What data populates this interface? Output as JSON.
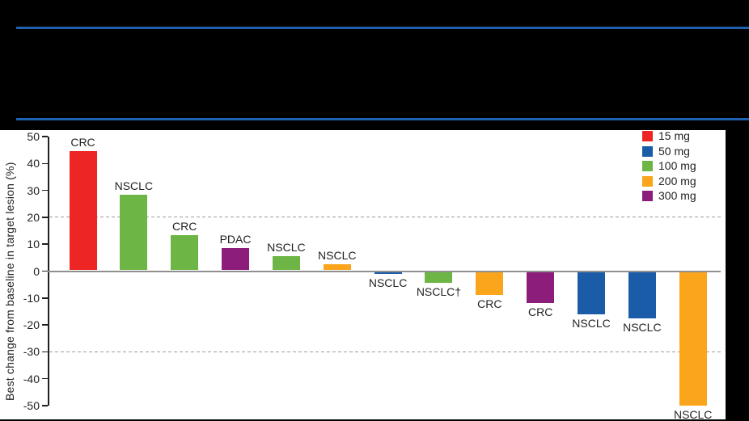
{
  "colors": {
    "background": "#000000",
    "panel_background": "#FFFFFF",
    "header_rule": "#1E63B0",
    "axis": "#231F20",
    "zero_line": "#8F8F8F",
    "reference_line": "#9C9C9C",
    "text": "#231F20"
  },
  "chart_data": {
    "type": "bar",
    "subtype": "waterfall",
    "title": "",
    "ylabel": "Best change from baseline in target lesion (%)",
    "ylim": [
      -50,
      50
    ],
    "yticks": [
      50,
      40,
      30,
      20,
      10,
      0,
      -10,
      -20,
      -30,
      -40,
      -50
    ],
    "reference_lines": [
      20,
      -30
    ],
    "legend_position": "top-right",
    "legend": [
      {
        "label": "15 mg",
        "color": "#ED2524"
      },
      {
        "label": "50 mg",
        "color": "#1A5CA8"
      },
      {
        "label": "100 mg",
        "color": "#6DB544"
      },
      {
        "label": "200 mg",
        "color": "#FAA51C"
      },
      {
        "label": "300 mg",
        "color": "#8C1D7B"
      }
    ],
    "bars": [
      {
        "label": "CRC",
        "dose": "15 mg",
        "value": 44.5
      },
      {
        "label": "NSCLC",
        "dose": "100 mg",
        "value": 28.5
      },
      {
        "label": "CRC",
        "dose": "100 mg",
        "value": 13.5
      },
      {
        "label": "PDAC",
        "dose": "300 mg",
        "value": 8.5
      },
      {
        "label": "NSCLC",
        "dose": "100 mg",
        "value": 5.5
      },
      {
        "label": "NSCLC",
        "dose": "200 mg",
        "value": 2.5
      },
      {
        "label": "NSCLC",
        "dose": "50 mg",
        "value": -1
      },
      {
        "label": "NSCLC†",
        "dose": "100 mg",
        "value": -4.5
      },
      {
        "label": "CRC",
        "dose": "200 mg",
        "value": -9
      },
      {
        "label": "CRC",
        "dose": "300 mg",
        "value": -12
      },
      {
        "label": "NSCLC",
        "dose": "50 mg",
        "value": -16
      },
      {
        "label": "NSCLC",
        "dose": "50 mg",
        "value": -17.5
      },
      {
        "label": "NSCLC",
        "dose": "200 mg",
        "value": -50
      }
    ]
  }
}
